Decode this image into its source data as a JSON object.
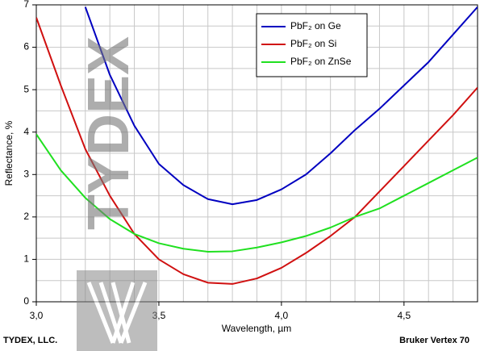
{
  "chart_data": {
    "type": "line",
    "x_label": "Wavelength, µm",
    "y_label": "Reflectance, %",
    "footer_left": "TYDEX, LLC.",
    "footer_right": "Bruker Vertex 70",
    "watermark": "TYDEX",
    "x": [
      3.0,
      3.1,
      3.2,
      3.3,
      3.4,
      3.5,
      3.6,
      3.7,
      3.8,
      3.9,
      4.0,
      4.1,
      4.2,
      4.3,
      4.4,
      4.5,
      4.6,
      4.7,
      4.8
    ],
    "series": [
      {
        "name": "PbF₂ on Ge",
        "color": "#0000c0",
        "values": [
          null,
          null,
          6.95,
          5.35,
          4.15,
          3.25,
          2.75,
          2.42,
          2.3,
          2.4,
          2.65,
          3.0,
          3.5,
          4.05,
          4.55,
          5.1,
          5.65,
          6.3,
          6.95
        ]
      },
      {
        "name": "PbF₂ on Si",
        "color": "#d01010",
        "values": [
          6.7,
          5.1,
          3.6,
          2.5,
          1.6,
          1.0,
          0.65,
          0.45,
          0.42,
          0.55,
          0.8,
          1.15,
          1.55,
          2.0,
          2.6,
          3.2,
          3.8,
          4.4,
          5.05
        ]
      },
      {
        "name": "PbF₂ on ZnSe",
        "color": "#20e020",
        "values": [
          3.95,
          3.1,
          2.45,
          1.95,
          1.6,
          1.38,
          1.25,
          1.18,
          1.19,
          1.28,
          1.4,
          1.55,
          1.75,
          2.0,
          2.2,
          2.5,
          2.8,
          3.1,
          3.4
        ]
      }
    ],
    "xlim": [
      3.0,
      4.8
    ],
    "ylim": [
      0,
      7
    ],
    "xticks": [
      {
        "value": 3.0,
        "label": "3,0"
      },
      {
        "value": 3.5,
        "label": "3,5"
      },
      {
        "value": 4.0,
        "label": "4,0"
      },
      {
        "value": 4.5,
        "label": "4,5"
      }
    ],
    "xminorticks": [
      3.1,
      3.2,
      3.3,
      3.4,
      3.6,
      3.7,
      3.8,
      3.9,
      4.1,
      4.2,
      4.3,
      4.4,
      4.6,
      4.7
    ],
    "yticks": [
      0,
      1,
      2,
      3,
      4,
      5,
      6,
      7
    ],
    "yminorticks": [
      0.5,
      1.5,
      2.5,
      3.5,
      4.5,
      5.5,
      6.5
    ],
    "grid": true,
    "legend": "upper right"
  }
}
